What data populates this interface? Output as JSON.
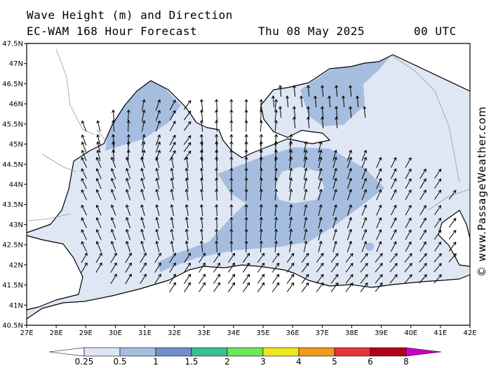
{
  "header": {
    "title_line1": "Wave Height (m) and Direction",
    "title_line2": "EC-WAM 168 Hour Forecast",
    "date": "Thu 08 May 2025",
    "time": "00 UTC"
  },
  "credit": "© www.PassageWeather.com",
  "map": {
    "x_ticks": [
      "27E",
      "28E",
      "29E",
      "30E",
      "31E",
      "32E",
      "33E",
      "34E",
      "35E",
      "36E",
      "37E",
      "38E",
      "39E",
      "40E",
      "41E",
      "42E"
    ],
    "y_ticks": [
      "47.5N",
      "47N",
      "46.5N",
      "46N",
      "45.5N",
      "45N",
      "44.5N",
      "44N",
      "43.5N",
      "43N",
      "42.5N",
      "42N",
      "41.5N",
      "41N",
      "40.5N"
    ],
    "colors": {
      "sea_low": "#dfe7f5",
      "sea_mid": "#a5bee0",
      "land": "#ffffff",
      "coast": "#000000",
      "border": "#999999"
    }
  },
  "colorbar": {
    "labels": [
      "0.25",
      "0.5",
      "1",
      "1.5",
      "2",
      "3",
      "4",
      "5",
      "6",
      "8"
    ],
    "colors": [
      "#ffffff",
      "#dfe7f5",
      "#a5bee0",
      "#6d90cc",
      "#3cc08c",
      "#6ee65a",
      "#f0e61e",
      "#f09a1e",
      "#e6323c",
      "#b40014",
      "#c800c8"
    ]
  }
}
